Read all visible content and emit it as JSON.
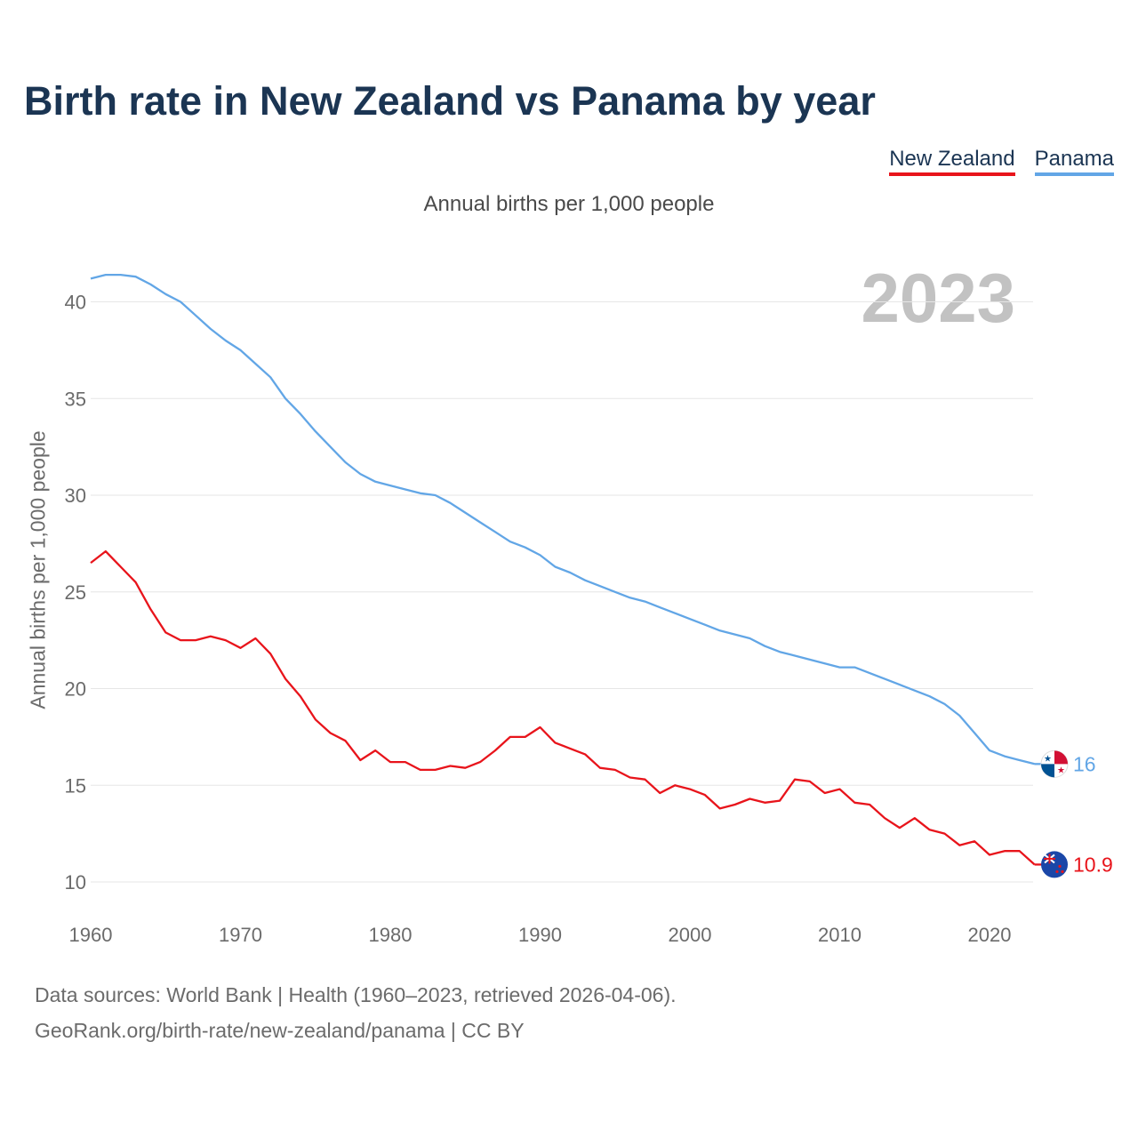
{
  "title": "Birth rate in New Zealand vs Panama by year",
  "subtitle": "Annual births per 1,000 people",
  "year_badge": "2023",
  "legend": [
    {
      "label": "New Zealand",
      "color": "#e8141b"
    },
    {
      "label": "Panama",
      "color": "#62a6e6"
    }
  ],
  "footer": {
    "source_line": "Data sources: World Bank | Health (1960–2023, retrieved 2026-04-06).",
    "credit_line": "GeoRank.org/birth-rate/new-zealand/panama | CC BY"
  },
  "chart_data": {
    "type": "line",
    "title": "Birth rate in New Zealand vs Panama by year",
    "xlabel": "",
    "ylabel": "Annual births per 1,000 people",
    "xlim": [
      1960,
      2023
    ],
    "ylim": [
      9,
      42
    ],
    "x_ticks": [
      1960,
      1970,
      1980,
      1990,
      2000,
      2010,
      2020
    ],
    "y_ticks": [
      10,
      15,
      20,
      25,
      30,
      35,
      40
    ],
    "grid": true,
    "legend_position": "top-right",
    "x": [
      1960,
      1961,
      1962,
      1963,
      1964,
      1965,
      1966,
      1967,
      1968,
      1969,
      1970,
      1971,
      1972,
      1973,
      1974,
      1975,
      1976,
      1977,
      1978,
      1979,
      1980,
      1981,
      1982,
      1983,
      1984,
      1985,
      1986,
      1987,
      1988,
      1989,
      1990,
      1991,
      1992,
      1993,
      1994,
      1995,
      1996,
      1997,
      1998,
      1999,
      2000,
      2001,
      2002,
      2003,
      2004,
      2005,
      2006,
      2007,
      2008,
      2009,
      2010,
      2011,
      2012,
      2013,
      2014,
      2015,
      2016,
      2017,
      2018,
      2019,
      2020,
      2021,
      2022,
      2023
    ],
    "series": [
      {
        "name": "New Zealand",
        "color": "#e8141b",
        "end_label": "10.9",
        "values": [
          26.5,
          27.1,
          26.3,
          25.5,
          24.1,
          22.9,
          22.5,
          22.5,
          22.7,
          22.5,
          22.1,
          22.6,
          21.8,
          20.5,
          19.6,
          18.4,
          17.7,
          17.3,
          16.3,
          16.8,
          16.2,
          16.2,
          15.8,
          15.8,
          16.0,
          15.9,
          16.2,
          16.8,
          17.5,
          17.5,
          18.0,
          17.2,
          16.9,
          16.6,
          15.9,
          15.8,
          15.4,
          15.3,
          14.6,
          15.0,
          14.8,
          14.5,
          13.8,
          14.0,
          14.3,
          14.1,
          14.2,
          15.3,
          15.2,
          14.6,
          14.8,
          14.1,
          14.0,
          13.3,
          12.8,
          13.3,
          12.7,
          12.5,
          11.9,
          12.1,
          11.4,
          11.6,
          11.6,
          10.9
        ]
      },
      {
        "name": "Panama",
        "color": "#62a6e6",
        "end_label": "16",
        "values": [
          41.2,
          41.4,
          41.4,
          41.3,
          40.9,
          40.4,
          40.0,
          39.3,
          38.6,
          38.0,
          37.5,
          36.8,
          36.1,
          35.0,
          34.2,
          33.3,
          32.5,
          31.7,
          31.1,
          30.7,
          30.5,
          30.3,
          30.1,
          30.0,
          29.6,
          29.1,
          28.6,
          28.1,
          27.6,
          27.3,
          26.9,
          26.3,
          26.0,
          25.6,
          25.3,
          25.0,
          24.7,
          24.5,
          24.2,
          23.9,
          23.6,
          23.3,
          23.0,
          22.8,
          22.6,
          22.2,
          21.9,
          21.7,
          21.5,
          21.3,
          21.1,
          21.1,
          20.8,
          20.5,
          20.2,
          19.9,
          19.6,
          19.2,
          18.6,
          17.7,
          16.8,
          16.5,
          16.3,
          16.1
        ]
      }
    ]
  }
}
